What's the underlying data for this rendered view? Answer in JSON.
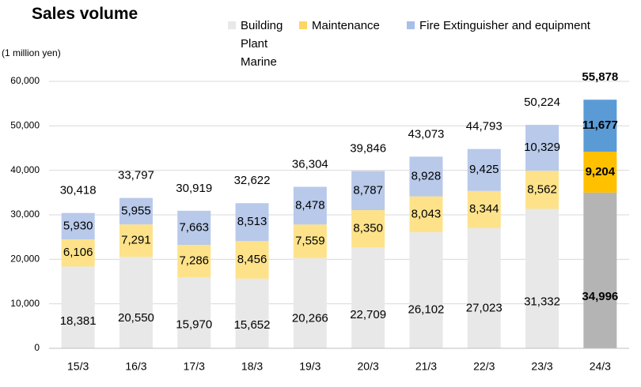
{
  "chart_data": {
    "type": "bar",
    "stacked": true,
    "title": "Sales volume",
    "unit_label": "(1 million  yen)",
    "categories": [
      "15/3",
      "16/3",
      "17/3",
      "18/3",
      "19/3",
      "20/3",
      "21/3",
      "22/3",
      "23/3",
      "24/3"
    ],
    "ylim": [
      0,
      60000
    ],
    "yticks": [
      0,
      10000,
      20000,
      30000,
      40000,
      50000,
      60000
    ],
    "ytick_labels": [
      "0",
      "10,000",
      "20,000",
      "30,000",
      "40,000",
      "50,000",
      "60,000"
    ],
    "grid": true,
    "legend_position": "top",
    "series": [
      {
        "name": "Building Plant Marine",
        "legend_lines": [
          "Building",
          "Plant",
          "Marine"
        ],
        "color": "#e8e8e8",
        "highlight_color": "#b4b4b4",
        "values": [
          18381,
          20550,
          15970,
          15652,
          20266,
          22709,
          26102,
          27023,
          31332,
          34996
        ],
        "labels": [
          "18,381",
          "20,550",
          "15,970",
          "15,652",
          "20,266",
          "22,709",
          "26,102",
          "27,023",
          "31,332",
          "34,996"
        ]
      },
      {
        "name": "Maintenance",
        "color": "#fde28a",
        "highlight_color": "#ffc000",
        "values": [
          6106,
          7291,
          7286,
          8456,
          7559,
          8350,
          8043,
          8344,
          8562,
          9204
        ],
        "labels": [
          "6,106",
          "7,291",
          "7,286",
          "8,456",
          "7,559",
          "8,350",
          "8,043",
          "8,344",
          "8,562",
          "9,204"
        ]
      },
      {
        "name": "Fire Extinguisher and equipment",
        "color": "#b8c9ea",
        "highlight_color": "#5b9bd5",
        "values": [
          5930,
          5955,
          7663,
          8513,
          8478,
          8787,
          8928,
          9425,
          10329,
          11677
        ],
        "labels": [
          "5,930",
          "5,955",
          "7,663",
          "8,513",
          "8,478",
          "8,787",
          "8,928",
          "9,425",
          "10,329",
          "11,677"
        ]
      }
    ],
    "totals": [
      30418,
      33797,
      30919,
      32622,
      36304,
      39846,
      43073,
      44793,
      50224,
      55878
    ],
    "total_labels": [
      "30,418",
      "33,797",
      "30,919",
      "32,622",
      "36,304",
      "39,846",
      "43,073",
      "44,793",
      "50,224",
      "55,878"
    ],
    "highlight_category": "24/3"
  }
}
